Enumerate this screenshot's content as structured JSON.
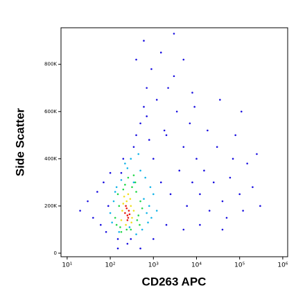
{
  "chart_data": {
    "type": "scatter",
    "xscale": "log",
    "xlabel": "CD263 APC",
    "ylabel": "Side Scatter",
    "xlim": [
      7.2,
      1300000
    ],
    "ylim": [
      -15000,
      955000
    ],
    "xticks": [
      {
        "value": 10,
        "label": "10¹"
      },
      {
        "value": 100,
        "label": "10²"
      },
      {
        "value": 1000,
        "label": "10³"
      },
      {
        "value": 10000,
        "label": "10⁴"
      },
      {
        "value": 100000,
        "label": "10⁵"
      },
      {
        "value": 1000000,
        "label": "10⁶"
      }
    ],
    "yticks": [
      0,
      {
        "value": 200000,
        "label": "200K"
      },
      {
        "value": 400000,
        "label": "400K"
      },
      {
        "value": 600000,
        "label": "600K"
      },
      {
        "value": 800000,
        "label": "800K"
      }
    ],
    "series": [
      {
        "color": "#1a10e0",
        "x": [
          20,
          30,
          40,
          50,
          60,
          70,
          80,
          90,
          100,
          150,
          200,
          300,
          350,
          400,
          500,
          600,
          700,
          800,
          1000,
          1200,
          1500,
          2000,
          2500,
          3000,
          3500,
          4000,
          5000,
          6000,
          7000,
          8000,
          10000,
          12000,
          15000,
          20000,
          25000,
          30000,
          40000,
          50000,
          60000,
          80000,
          100000,
          120000,
          150000,
          200000,
          250000,
          300000,
          400,
          600,
          900,
          1500,
          2200,
          3000,
          5000,
          700,
          1800,
          9000,
          18000,
          35000,
          500,
          1000,
          2000,
          5000,
          12000,
          40000,
          150,
          250,
          8000,
          70000,
          110000,
          180
        ],
        "y": [
          180000,
          220000,
          150000,
          260000,
          120000,
          300000,
          90000,
          200000,
          340000,
          60000,
          400000,
          60000,
          450000,
          500000,
          550000,
          620000,
          700000,
          480000,
          400000,
          650000,
          300000,
          500000,
          250000,
          750000,
          600000,
          350000,
          450000,
          200000,
          550000,
          300000,
          400000,
          250000,
          350000,
          180000,
          300000,
          450000,
          220000,
          150000,
          320000,
          500000,
          250000,
          180000,
          380000,
          280000,
          420000,
          200000,
          820000,
          900000,
          780000,
          850000,
          700000,
          930000,
          820000,
          580000,
          520000,
          620000,
          520000,
          650000,
          20000,
          60000,
          120000,
          100000,
          120000,
          100000,
          20000,
          40000,
          680000,
          400000,
          600000,
          340000
        ]
      },
      {
        "color": "#12b4e8",
        "x": [
          110,
          120,
          600,
          700,
          140,
          650,
          250,
          400,
          800,
          100,
          180,
          900,
          300,
          500,
          160,
          1000,
          450,
          130,
          750,
          350,
          220,
          850,
          550,
          280,
          1200
        ],
        "y": [
          130000,
          220000,
          230000,
          170000,
          280000,
          320000,
          360000,
          80000,
          200000,
          170000,
          310000,
          150000,
          400000,
          350000,
          90000,
          250000,
          420000,
          260000,
          130000,
          300000,
          380000,
          280000,
          100000,
          110000,
          180000
        ]
      },
      {
        "color": "#22d84a",
        "x": [
          130,
          150,
          400,
          450,
          170,
          380,
          220,
          300,
          160,
          500,
          140,
          260,
          420,
          200,
          350,
          180,
          550,
          240,
          320,
          480
        ],
        "y": [
          150000,
          250000,
          260000,
          160000,
          110000,
          300000,
          290000,
          100000,
          200000,
          220000,
          120000,
          320000,
          140000,
          270000,
          330000,
          90000,
          190000,
          100000,
          280000,
          120000
        ]
      },
      {
        "color": "#f0e020",
        "x": [
          180,
          200,
          300,
          320,
          210,
          290,
          230,
          350,
          190,
          260,
          310,
          240
        ],
        "y": [
          140000,
          210000,
          200000,
          150000,
          240000,
          230000,
          120000,
          180000,
          180000,
          250000,
          130000,
          220000
        ]
      },
      {
        "color": "#e81810",
        "x": [
          220,
          250,
          270,
          240,
          260,
          230,
          280,
          250
        ],
        "y": [
          170000,
          160000,
          180000,
          190000,
          150000,
          200000,
          165000,
          140000
        ]
      }
    ]
  }
}
